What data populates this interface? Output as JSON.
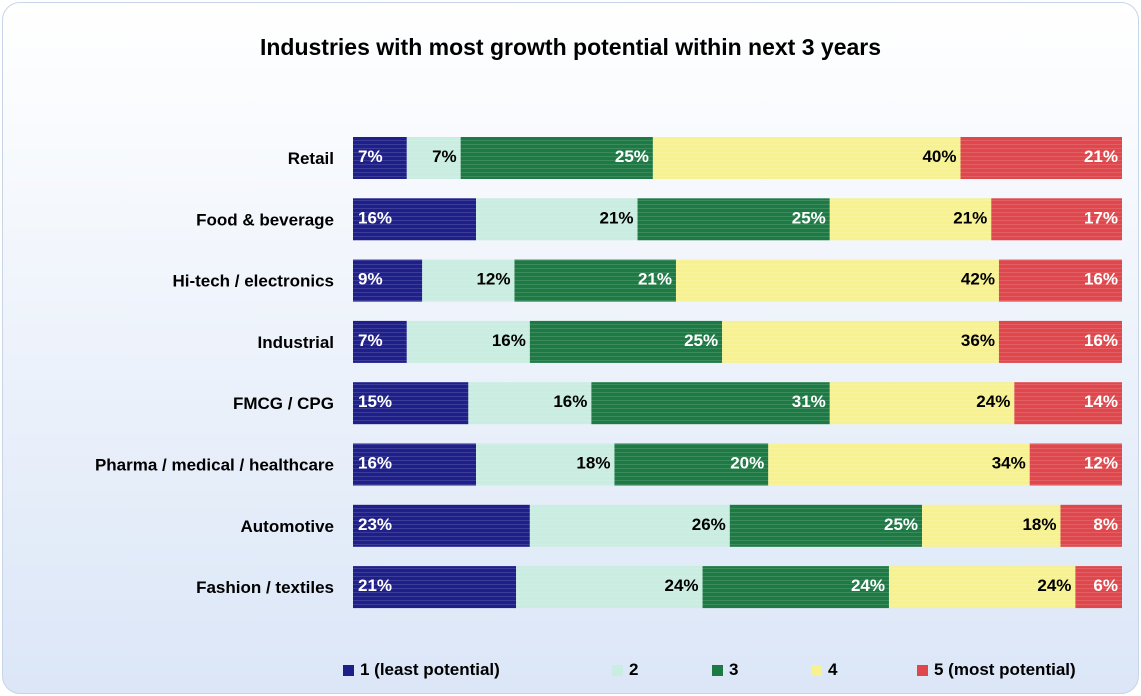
{
  "chart_data": {
    "type": "bar",
    "orientation": "horizontal",
    "stacked": true,
    "percent_stacked": true,
    "title": "Industries with most growth potential within next 3 years",
    "categories": [
      "Retail",
      "Food & beverage",
      "Hi-tech / electronics",
      "Industrial",
      "FMCG / CPG",
      "Pharma / medical / healthcare",
      "Automotive",
      "Fashion / textiles"
    ],
    "series": [
      {
        "name": "1 (least potential)",
        "color": "#1f1f8a",
        "label_color": "#ffffff",
        "values": [
          7,
          16,
          9,
          7,
          15,
          16,
          23,
          21
        ]
      },
      {
        "name": "2",
        "color": "#c9ede0",
        "label_color": "#000000",
        "values": [
          7,
          21,
          12,
          16,
          16,
          18,
          26,
          24
        ]
      },
      {
        "name": "3",
        "color": "#1e7a45",
        "label_color": "#ffffff",
        "values": [
          25,
          25,
          21,
          25,
          31,
          20,
          25,
          24
        ]
      },
      {
        "name": "4",
        "color": "#f7f18f",
        "label_color": "#000000",
        "values": [
          40,
          21,
          42,
          36,
          24,
          34,
          18,
          24
        ]
      },
      {
        "name": "5 (most potential)",
        "color": "#e0474c",
        "label_color": "#ffffff",
        "values": [
          21,
          17,
          16,
          16,
          14,
          12,
          8,
          6
        ]
      }
    ],
    "value_suffix": "%",
    "legend_position": "bottom",
    "grid": false
  }
}
